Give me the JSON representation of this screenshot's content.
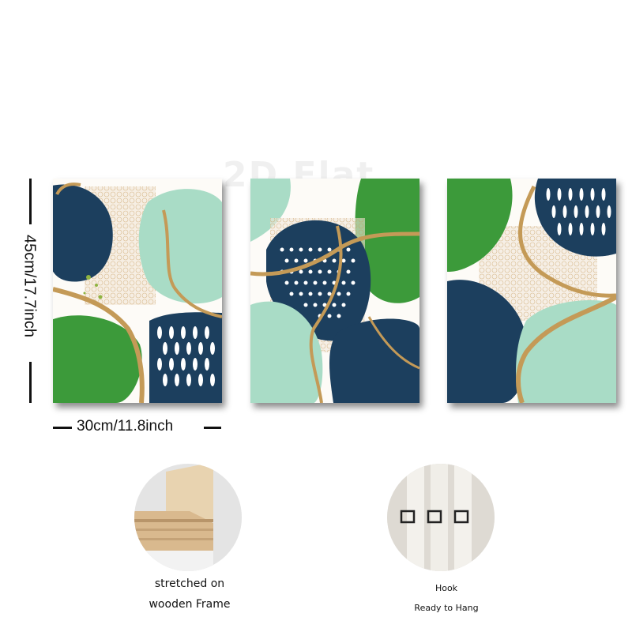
{
  "watermark": "2D Flat",
  "dimensions": {
    "height_label": "45cm/17.7inch",
    "width_label": "30cm/11.8inch"
  },
  "panels": [
    {
      "id": "panel-1",
      "content": "green-navy-abstract-artwork"
    },
    {
      "id": "panel-2",
      "content": "green-navy-abstract-artwork"
    },
    {
      "id": "panel-3",
      "content": "green-navy-abstract-artwork"
    }
  ],
  "features": {
    "frame": {
      "line1": "stretched on",
      "line2": "wooden Frame"
    },
    "hook": {
      "line1": "Hook",
      "line2": "Ready to Hang"
    }
  },
  "colors": {
    "navy": "#1c3f5e",
    "green": "#3c9a3a",
    "mint": "#a9dcc6",
    "gold": "#c49a57",
    "cream": "#f2e8da"
  }
}
